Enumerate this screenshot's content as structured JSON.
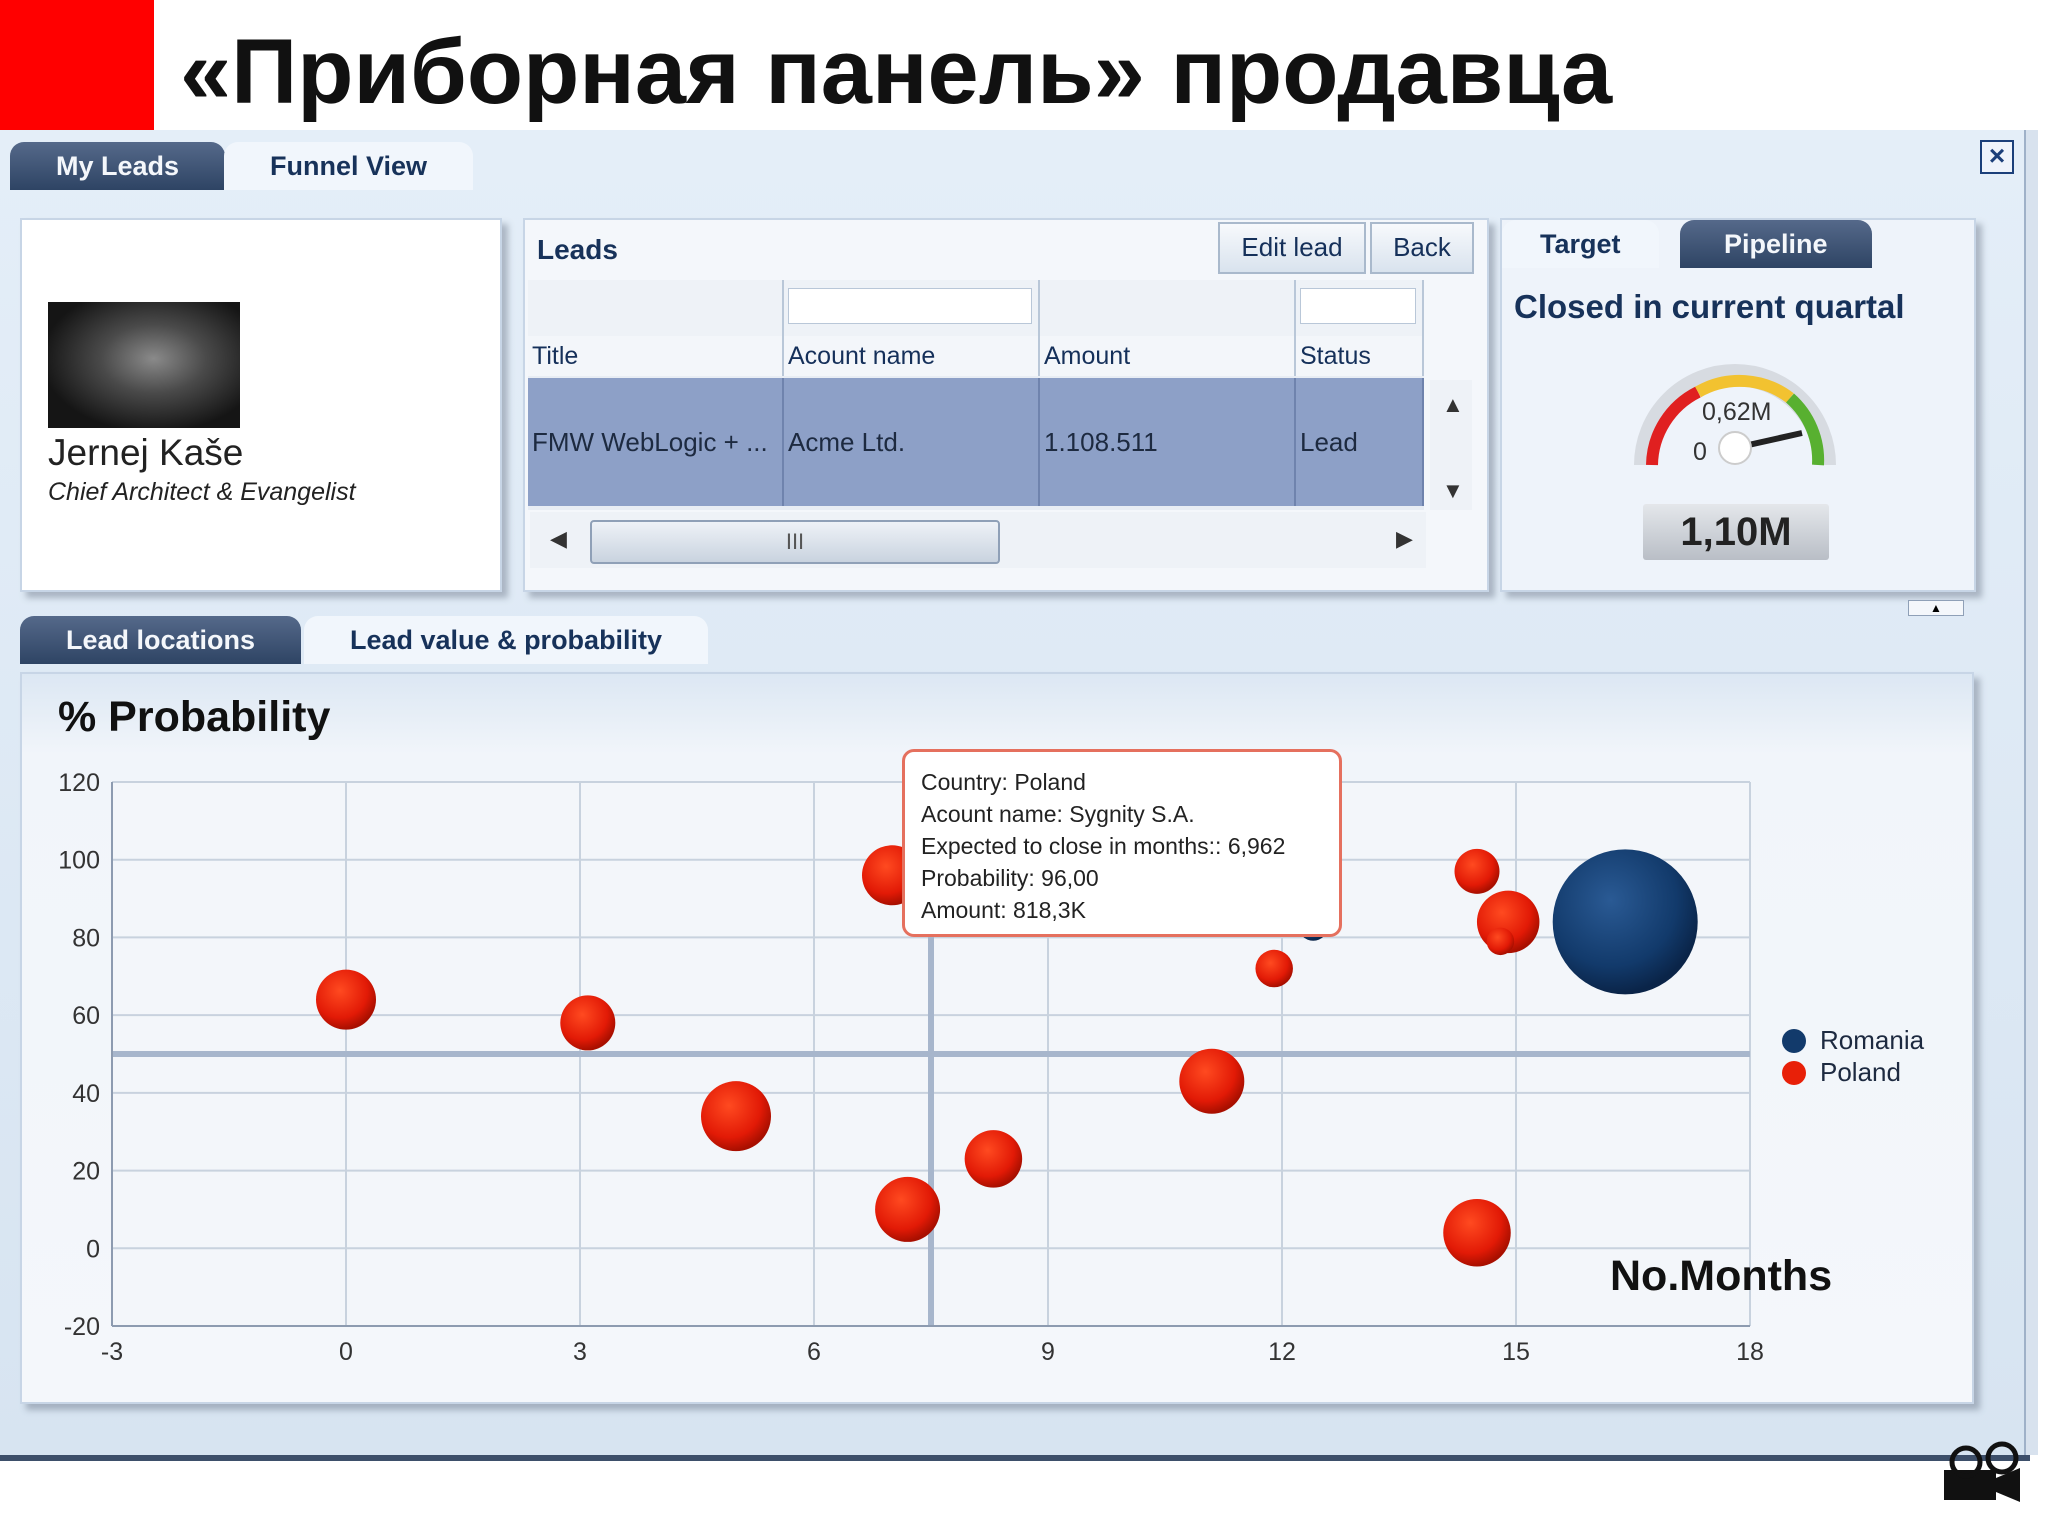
{
  "slide": {
    "title": "«Приборная панель» продавца"
  },
  "main_tabs": [
    {
      "label": "My Leads"
    },
    {
      "label": "Funnel View"
    }
  ],
  "profile": {
    "name": "Jernej Kaše",
    "role": "Chief Architect & Evangelist"
  },
  "leads": {
    "title": "Leads",
    "edit_label": "Edit lead",
    "back_label": "Back",
    "columns": [
      "Title",
      "Acount name",
      "Amount",
      "Status"
    ],
    "rows": [
      [
        "FMW WebLogic + ...",
        "Acme Ltd.",
        "1.108.511",
        "Lead"
      ]
    ],
    "scroll_grip": "III"
  },
  "gauge": {
    "tabs": [
      "Target",
      "Pipeline"
    ],
    "title": "Closed in current quartal",
    "marker_label": "0,62M",
    "min_label": "0",
    "value_label": "1,10M",
    "colors": {
      "red": "#e02020",
      "yellow": "#f2c230",
      "green": "#58b030"
    }
  },
  "bottom_tabs": [
    {
      "label": "Lead locations"
    },
    {
      "label": "Lead value & probability"
    }
  ],
  "tooltip": {
    "lines": [
      "Country: Poland",
      "Acount name: Sygnity S.A.",
      "Expected to close in months:: 6,962",
      "Probability: 96,00",
      "Amount: 818,3K"
    ]
  },
  "chart_data": {
    "type": "scatter",
    "ylabel": "% Probability",
    "xlabel": "No.Months",
    "xlim": [
      -3,
      18
    ],
    "ylim": [
      -20,
      120
    ],
    "x_ticks": [
      "-3",
      "0",
      "3",
      "6",
      "9",
      "12",
      "15",
      "18"
    ],
    "y_ticks": [
      "120",
      "100",
      "80",
      "60",
      "40",
      "20",
      "0",
      "-20"
    ],
    "crosshair": {
      "x": 7.5,
      "y": 50
    },
    "legend": {
      "placement": "right"
    },
    "series": [
      {
        "name": "Romania",
        "color": "#123a6b",
        "points": [
          {
            "x": 16.4,
            "y": 84,
            "size": 58
          },
          {
            "x": 12.4,
            "y": 83,
            "size": 12
          }
        ]
      },
      {
        "name": "Poland",
        "color": "#e82008",
        "points": [
          {
            "x": 0,
            "y": 64,
            "size": 24
          },
          {
            "x": 3.1,
            "y": 58,
            "size": 22
          },
          {
            "x": 5.0,
            "y": 34,
            "size": 28
          },
          {
            "x": 7.0,
            "y": 96,
            "size": 24
          },
          {
            "x": 7.2,
            "y": 10,
            "size": 26
          },
          {
            "x": 8.3,
            "y": 23,
            "size": 23
          },
          {
            "x": 11.1,
            "y": 43,
            "size": 26
          },
          {
            "x": 11.9,
            "y": 72,
            "size": 15
          },
          {
            "x": 14.5,
            "y": 4,
            "size": 27
          },
          {
            "x": 14.9,
            "y": 84,
            "size": 25
          },
          {
            "x": 14.5,
            "y": 97,
            "size": 18
          },
          {
            "x": 14.8,
            "y": 79,
            "size": 11
          },
          {
            "x": 11.9,
            "y": 93,
            "size": 9
          }
        ]
      }
    ]
  }
}
